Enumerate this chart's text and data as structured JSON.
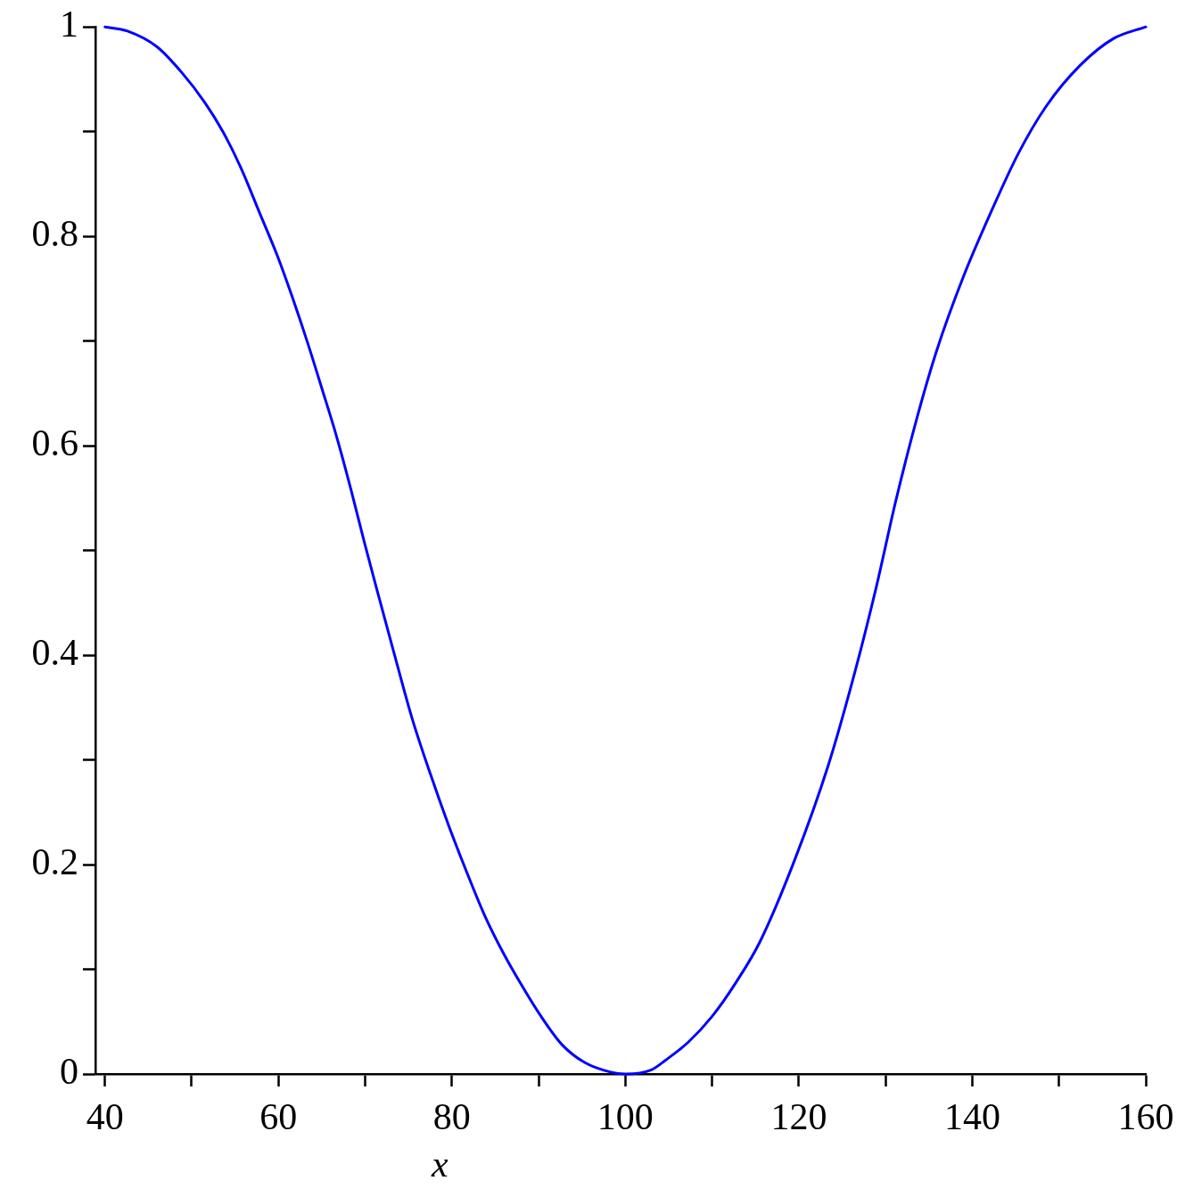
{
  "chart_data": {
    "type": "line",
    "xlabel": "x",
    "x": [
      40,
      42.6,
      46,
      48.9,
      51.5,
      53.6,
      55.7,
      57.8,
      59.9,
      61.6,
      63.3,
      65,
      66.7,
      68.4,
      69.9,
      71.6,
      73.3,
      75.4,
      77.5,
      79.6,
      81.7,
      83.8,
      85.9,
      88.1,
      90.2,
      92.7,
      95.3,
      98.2,
      100,
      103,
      104.6,
      107.2,
      110,
      112.8,
      115.5,
      119.5,
      123.4,
      126.5,
      128.9,
      131.2,
      133.6,
      135.9,
      139,
      142.2,
      145.3,
      148.5,
      152.4,
      156.3,
      160
    ],
    "values": [
      1,
      0.996,
      0.981,
      0.956,
      0.928,
      0.9,
      0.865,
      0.823,
      0.781,
      0.742,
      0.7,
      0.655,
      0.609,
      0.557,
      0.508,
      0.455,
      0.403,
      0.34,
      0.287,
      0.238,
      0.193,
      0.151,
      0.116,
      0.084,
      0.056,
      0.028,
      0.011,
      0.002,
      0,
      0.004,
      0.013,
      0.03,
      0.055,
      0.088,
      0.126,
      0.204,
      0.295,
      0.385,
      0.464,
      0.548,
      0.626,
      0.691,
      0.762,
      0.824,
      0.879,
      0.924,
      0.963,
      0.989,
      1
    ],
    "color": "#0000ff",
    "xlim": [
      38.9,
      160
    ],
    "ylim": [
      0,
      1
    ],
    "xticks": [
      40,
      {
        "value": 50,
        "label": null
      },
      60,
      {
        "value": 70,
        "label": null
      },
      80,
      {
        "value": 90,
        "label": null
      },
      100,
      {
        "value": 110,
        "label": null
      },
      120,
      {
        "value": 130,
        "label": null
      },
      140,
      {
        "value": 150,
        "label": null
      },
      160
    ],
    "yticks": [
      0,
      {
        "value": 0.1,
        "label": null
      },
      0.2,
      {
        "value": 0.3,
        "label": null
      },
      0.4,
      {
        "value": 0.5,
        "label": null
      },
      0.6,
      {
        "value": 0.7,
        "label": null
      },
      0.8,
      {
        "value": 0.9,
        "label": null
      },
      1
    ],
    "grid": false,
    "legend": false,
    "marker": "none",
    "line_style": "solid"
  }
}
